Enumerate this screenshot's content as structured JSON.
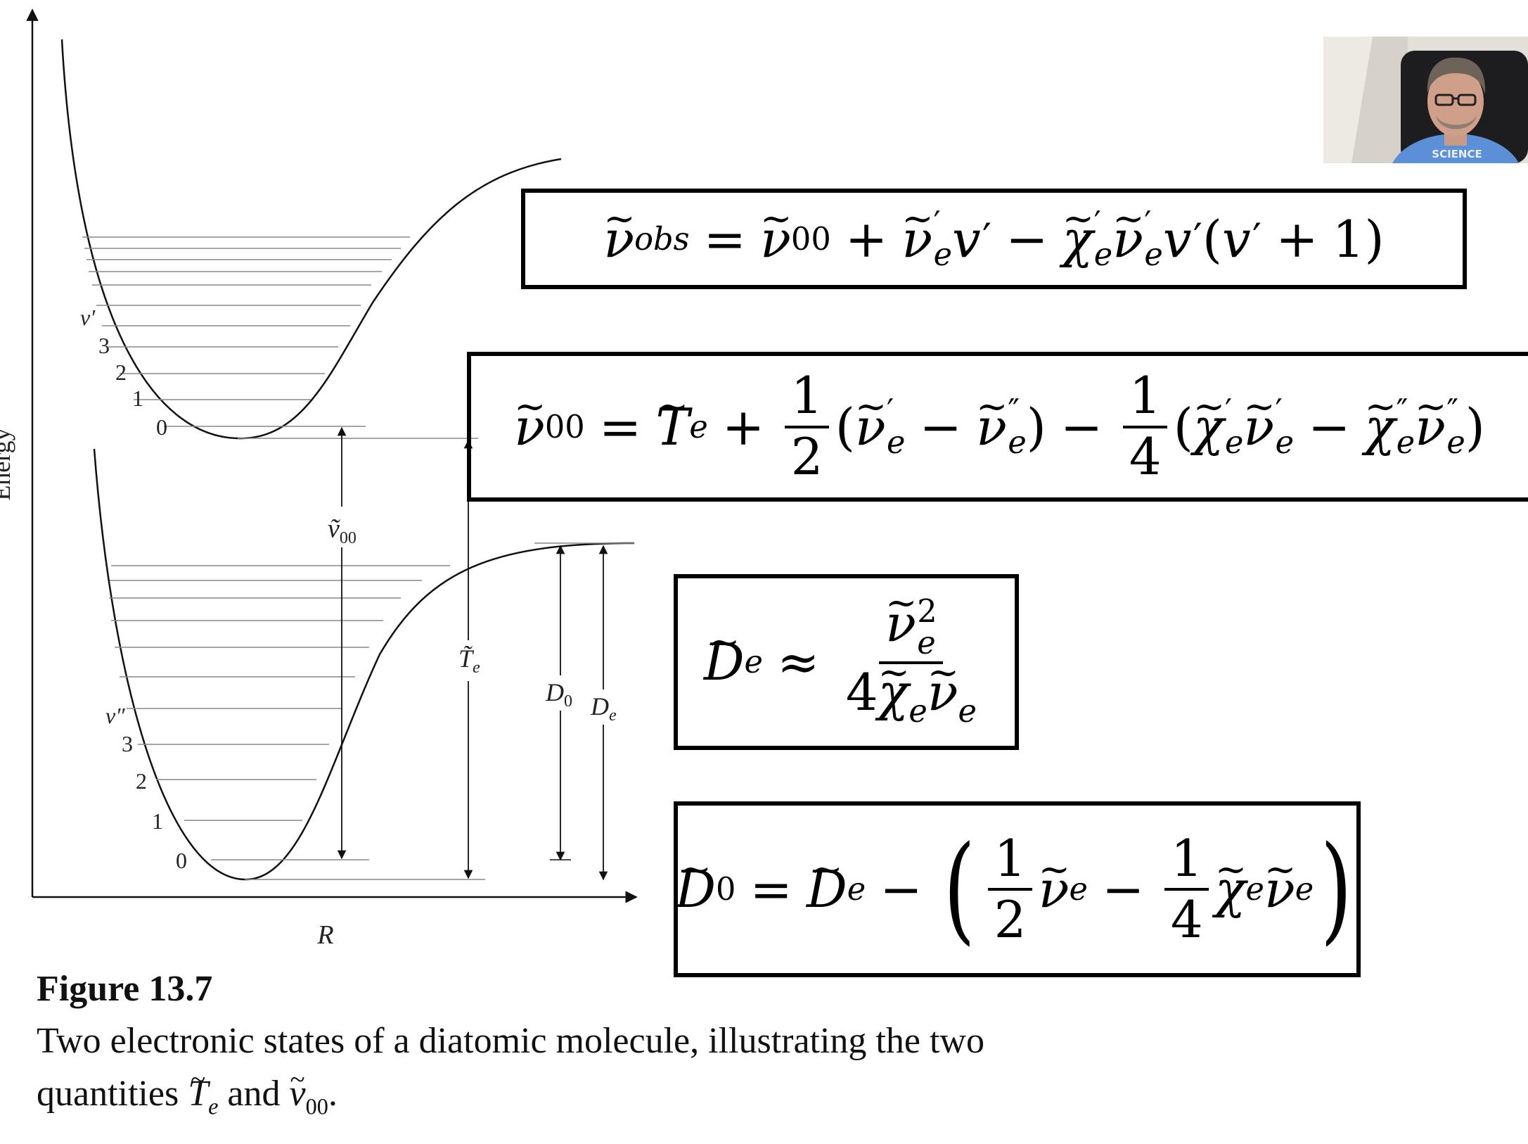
{
  "diagram": {
    "y_axis_label": "Energy",
    "x_axis_label": "R",
    "upper_state": {
      "level_label": "v′",
      "levels": [
        "3",
        "2",
        "1",
        "0"
      ]
    },
    "lower_state": {
      "level_label": "v″",
      "levels": [
        "3",
        "2",
        "1",
        "0"
      ]
    },
    "annotations": {
      "nu00": "ṽ",
      "nu00_sub": "00",
      "Te": "T̃",
      "Te_sub": "e",
      "D0": "D",
      "D0_sub": "0",
      "De": "D",
      "De_sub": "e"
    }
  },
  "equations": {
    "eq1": {
      "text": "ṽ_obs = ṽ_00 + ṽ′_e v′ − χ̃′_e ṽ′_e v′(v′ + 1)"
    },
    "eq2": {
      "text": "ṽ_00 = T̃_e + 1/2 (ṽ′_e − ṽ″_e) − 1/4 (χ̃′_e ṽ′_e − χ̃″_e ṽ″_e)"
    },
    "eq3": {
      "text": "D̃_e ≈ ṽ_e^2 / 4χ̃_e ṽ_e"
    },
    "eq4": {
      "text": "D̃_0 = D̃_e − (1/2 ṽ_e − 1/4 χ̃_e ṽ_e)"
    }
  },
  "caption": {
    "title": "Figure 13.7",
    "line1": "Two electronic states of a diatomic molecule, illustrating the two",
    "line2_before": "quantities",
    "line2_middle": "and",
    "line2_end": "."
  },
  "webcam": {
    "shirt_text": "SCIENCE"
  }
}
